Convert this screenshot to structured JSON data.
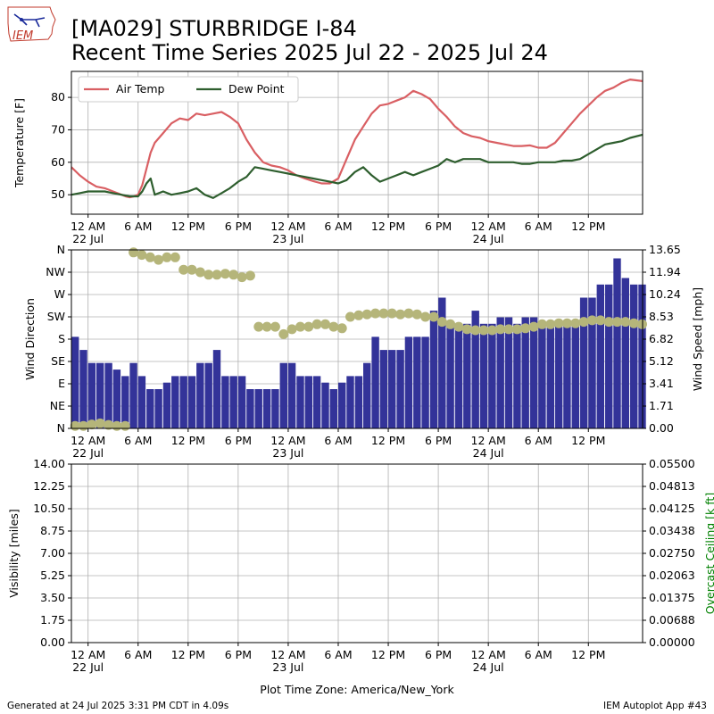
{
  "header": {
    "title_line1": "[MA029] STURBRIDGE I-84",
    "title_line2": "Recent Time Series 2025 Jul 22 - 2025 Jul 24",
    "logo_text": "IEM"
  },
  "footer": {
    "generated": "Generated at 24 Jul 2025 3:31 PM CDT in 4.09s",
    "app": "IEM Autoplot App #43",
    "timezone_label": "Plot Time Zone: America/New_York"
  },
  "colors": {
    "air_temp": "#d95f63",
    "dew_point": "#2e5e2e",
    "wind_speed": "#333399",
    "wind_dir": "#b5b57a",
    "grid": "#b0b0b0",
    "ceiling_label": "#008000"
  },
  "x_axis": {
    "ticks_hours": [
      0,
      6,
      12,
      18,
      24,
      30,
      36,
      42,
      48,
      54,
      60
    ],
    "tick_labels": [
      "12 AM",
      "6 AM",
      "12 PM",
      "6 PM",
      "12 AM",
      "6 AM",
      "12 PM",
      "6 PM",
      "12 AM",
      "6 AM",
      "12 PM"
    ],
    "date_labels": [
      {
        "hour": 0,
        "text": "22 Jul"
      },
      {
        "hour": 24,
        "text": "23 Jul"
      },
      {
        "hour": 48,
        "text": "24 Jul"
      }
    ],
    "range_hours": [
      -2,
      66.5
    ]
  },
  "chart_data": [
    {
      "type": "line",
      "ylabel": "Temperature [F]",
      "ylim": [
        44,
        88
      ],
      "yticks": [
        50,
        60,
        70,
        80
      ],
      "grid": true,
      "legend": "top-left",
      "series": [
        {
          "name": "Air Temp",
          "x": [
            -2,
            -1,
            0,
            1,
            2,
            3,
            4,
            4.5,
            5,
            5.5,
            6,
            6.5,
            7,
            7.5,
            8,
            9,
            10,
            11,
            12,
            13,
            14,
            15,
            16,
            17,
            18,
            19,
            20,
            21,
            22,
            23,
            24,
            25,
            26,
            27,
            28,
            29,
            30,
            31,
            32,
            33,
            34,
            35,
            36,
            37,
            38,
            39,
            40,
            41,
            42,
            43,
            44,
            45,
            46,
            47,
            48,
            49,
            50,
            51,
            52,
            53,
            54,
            55,
            56,
            57,
            58,
            59,
            60,
            61,
            62,
            63,
            64,
            65,
            66.5
          ],
          "y": [
            58.5,
            56,
            54,
            52.5,
            52,
            51,
            50,
            49.5,
            49.2,
            49.5,
            50,
            53,
            58,
            63,
            66,
            69,
            72,
            73.5,
            73,
            75,
            74.5,
            75,
            75.5,
            74,
            72,
            67,
            63,
            60,
            59,
            58.5,
            57.5,
            56,
            55,
            54.2,
            53.5,
            53.5,
            55,
            61,
            67,
            71,
            75,
            77.5,
            78,
            79,
            80,
            82,
            81,
            79.5,
            76.5,
            74,
            71,
            69,
            68,
            67.5,
            66.5,
            66,
            65.5,
            65,
            65,
            65.2,
            64.5,
            64.5,
            66,
            69,
            72,
            75,
            77.5,
            80,
            82,
            83,
            84.5,
            85.5,
            85
          ]
        },
        {
          "name": "Dew Point",
          "x": [
            -2,
            -1,
            0,
            1,
            2,
            3,
            4,
            5,
            6,
            6.5,
            7,
            7.5,
            8,
            9,
            10,
            11,
            12,
            13,
            14,
            15,
            16,
            17,
            18,
            19,
            20,
            21,
            22,
            23,
            24,
            25,
            26,
            27,
            28,
            29,
            30,
            31,
            32,
            33,
            34,
            35,
            36,
            37,
            38,
            39,
            40,
            41,
            42,
            43,
            44,
            45,
            46,
            47,
            48,
            49,
            50,
            51,
            52,
            53,
            54,
            55,
            56,
            57,
            58,
            59,
            60,
            61,
            62,
            63,
            64,
            65,
            66.5
          ],
          "y": [
            50,
            50.5,
            51,
            51,
            51,
            50.5,
            50,
            49.5,
            49.5,
            51,
            53.5,
            55,
            50,
            51,
            50,
            50.5,
            51,
            52,
            50,
            49,
            50.5,
            52,
            54,
            55.5,
            58.5,
            58,
            57.5,
            57,
            56.5,
            56,
            55.5,
            55,
            54.5,
            54,
            53.5,
            54.5,
            57,
            58.5,
            56,
            54,
            55,
            56,
            57,
            56,
            57,
            58,
            59,
            61,
            60,
            61,
            61,
            61,
            60,
            60,
            60,
            60,
            59.5,
            59.5,
            60,
            60,
            60,
            60.5,
            60.5,
            61,
            62.5,
            64,
            65.5,
            66,
            66.5,
            67.5,
            68.5
          ]
        }
      ]
    },
    {
      "type": "bar",
      "ylabel": "Wind Direction",
      "ylabel_right": "Wind Speed [mph]",
      "yticks_left": [
        "N",
        "NE",
        "E",
        "SE",
        "S",
        "SW",
        "W",
        "NW",
        "N"
      ],
      "yticks_right": [
        "0.00",
        "1.71",
        "3.41",
        "5.12",
        "6.82",
        "8.53",
        "10.24",
        "11.94",
        "13.65"
      ],
      "ylim_right": [
        0,
        13.65
      ],
      "grid": true,
      "series": [
        {
          "name": "Wind Speed",
          "x": [
            -2,
            -1,
            0,
            1,
            2,
            3,
            4,
            5,
            6,
            7,
            8,
            9,
            10,
            11,
            12,
            13,
            14,
            15,
            16,
            17,
            18,
            19,
            20,
            21,
            22,
            23,
            24,
            25,
            26,
            27,
            28,
            29,
            30,
            31,
            32,
            33,
            34,
            35,
            36,
            37,
            38,
            39,
            40,
            41,
            42,
            43,
            44,
            45,
            46,
            47,
            48,
            49,
            50,
            51,
            52,
            53,
            54,
            55,
            56,
            57,
            58,
            59,
            60,
            61,
            62,
            63,
            64,
            65,
            66
          ],
          "y": [
            7.0,
            6.0,
            5.0,
            5.0,
            5.0,
            4.5,
            4.0,
            5.0,
            4.0,
            3.0,
            3.0,
            3.5,
            4.0,
            4.0,
            4.0,
            5.0,
            5.0,
            6.0,
            4.0,
            4.0,
            4.0,
            3.0,
            3.0,
            3.0,
            3.0,
            5.0,
            5.0,
            4.0,
            4.0,
            4.0,
            3.5,
            3.0,
            3.5,
            4.0,
            4.0,
            5.0,
            7.0,
            6.0,
            6.0,
            6.0,
            7.0,
            7.0,
            7.0,
            9.0,
            10.0,
            8.0,
            8.0,
            8.0,
            9.0,
            8.0,
            8.0,
            8.5,
            8.5,
            8.0,
            8.5,
            8.5,
            8.0,
            8.0,
            8.0,
            8.0,
            8.0,
            10.0,
            10.0,
            11.0,
            11.0,
            13.0,
            11.5,
            11.0,
            11.0
          ]
        },
        {
          "name": "Wind Direction",
          "x": [
            -2,
            -1,
            0,
            1,
            2,
            3,
            4,
            5,
            6,
            7,
            8,
            9,
            10,
            11,
            12,
            13,
            14,
            15,
            16,
            17,
            18,
            19,
            20,
            21,
            22,
            23,
            24,
            25,
            26,
            27,
            28,
            29,
            30,
            31,
            32,
            33,
            34,
            35,
            36,
            37,
            38,
            39,
            40,
            41,
            42,
            43,
            44,
            45,
            46,
            47,
            48,
            49,
            50,
            51,
            52,
            53,
            54,
            55,
            56,
            57,
            58,
            59,
            60,
            61,
            62,
            63,
            64,
            65,
            66
          ],
          "y_deg": [
            5,
            5,
            8,
            10,
            7,
            5,
            5,
            355,
            350,
            345,
            340,
            345,
            345,
            320,
            320,
            315,
            310,
            310,
            312,
            310,
            305,
            308,
            205,
            205,
            205,
            190,
            200,
            205,
            205,
            210,
            210,
            205,
            202,
            225,
            228,
            230,
            232,
            232,
            232,
            230,
            232,
            230,
            225,
            225,
            215,
            210,
            205,
            200,
            198,
            198,
            198,
            200,
            200,
            200,
            202,
            205,
            210,
            210,
            212,
            212,
            212,
            215,
            218,
            218,
            215,
            215,
            215,
            212,
            210
          ]
        }
      ]
    },
    {
      "type": "line",
      "ylabel": "Visibility [miles]",
      "ylabel_right": "Overcast Ceiling [k ft]",
      "yticks_left": [
        "0.00",
        "1.75",
        "3.50",
        "5.25",
        "7.00",
        "8.75",
        "10.50",
        "12.25",
        "14.00"
      ],
      "yticks_right": [
        "0.00000",
        "0.00688",
        "0.01375",
        "0.02063",
        "0.02750",
        "0.03438",
        "0.04125",
        "0.04813",
        "0.05500"
      ],
      "ylim": [
        0,
        14
      ],
      "ylim_right": [
        0,
        0.055
      ],
      "grid": true,
      "series": []
    }
  ]
}
